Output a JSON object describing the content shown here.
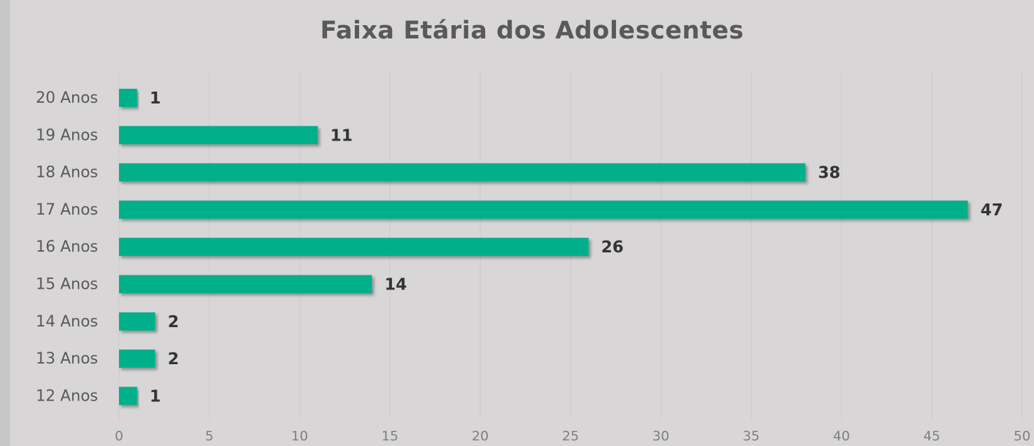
{
  "chart_data": {
    "type": "bar",
    "orientation": "horizontal",
    "title": "Faixa Etária dos Adolescentes",
    "categories": [
      "12 Anos",
      "13 Anos",
      "14 Anos",
      "15 Anos",
      "16 Anos",
      "17 Anos",
      "18 Anos",
      "19 Anos",
      "20 Anos"
    ],
    "values": [
      1,
      2,
      2,
      14,
      26,
      47,
      38,
      11,
      1
    ],
    "xlim": [
      0,
      50
    ],
    "x_ticks": [
      0,
      5,
      10,
      15,
      20,
      25,
      30,
      35,
      40,
      45,
      50
    ],
    "grid": true,
    "legend": "none",
    "bar_color": "#00b08a",
    "data_labels": true
  }
}
